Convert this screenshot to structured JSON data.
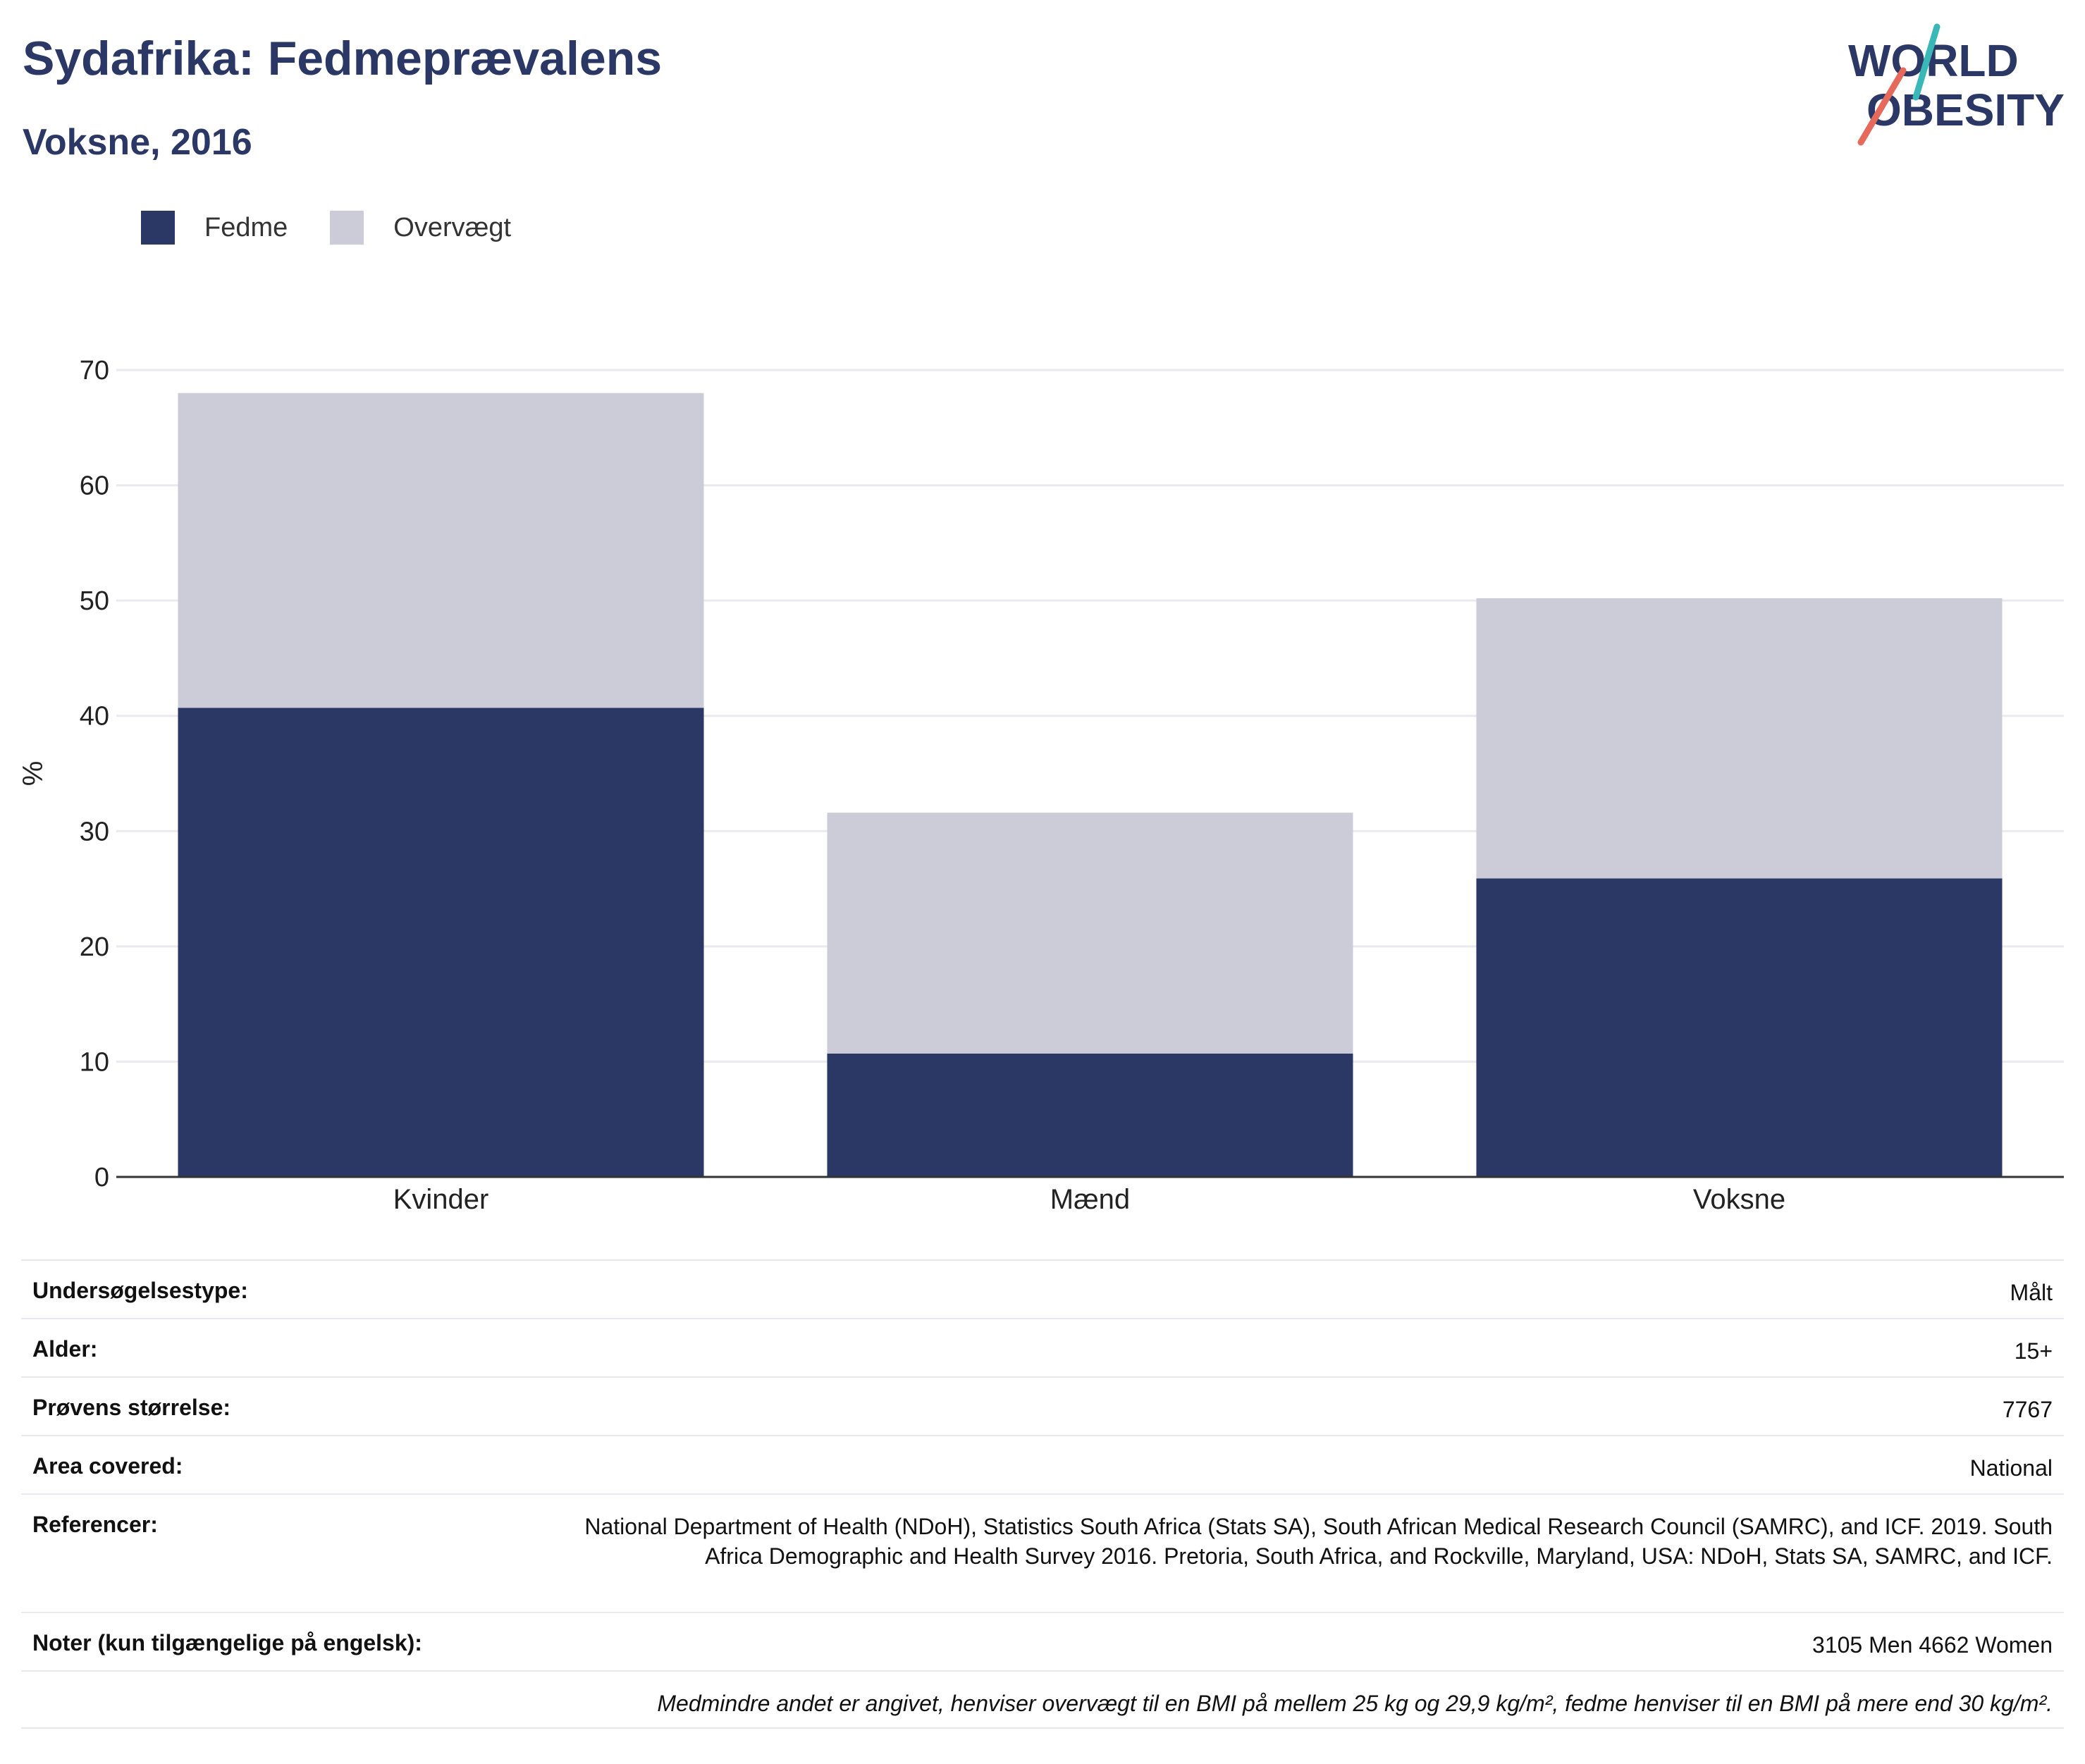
{
  "header": {
    "title": "Sydafrika: Fedmeprævalens",
    "subtitle": "Voksne, 2016"
  },
  "logo": {
    "line1": "WORLD",
    "line2": "OBESITY"
  },
  "colors": {
    "obesity": "#2b3764",
    "overweight": "#cbccd7",
    "grid": "#e9e9ef",
    "axis": "#333333",
    "logo_teal": "#3ab7b7",
    "logo_coral": "#e66a5c"
  },
  "legend": [
    {
      "label": "Fedme",
      "color": "#2b3764"
    },
    {
      "label": "Overvægt",
      "color": "#cbccd7"
    }
  ],
  "chart_data": {
    "type": "bar",
    "stacked": true,
    "categories": [
      "Kvinder",
      "Mænd",
      "Voksne"
    ],
    "series": [
      {
        "name": "Fedme",
        "values": [
          40.7,
          10.7,
          25.9
        ]
      },
      {
        "name": "Overvægt",
        "values": [
          27.3,
          20.9,
          24.3
        ]
      }
    ],
    "ylabel": "%",
    "ylim": [
      0,
      70
    ],
    "yticks": [
      0,
      10,
      20,
      30,
      40,
      50,
      60,
      70
    ],
    "grid": true,
    "legend_position": "top-left"
  },
  "details": {
    "survey_type": {
      "label": "Undersøgelsestype:",
      "value": "Målt"
    },
    "age": {
      "label": "Alder:",
      "value": "15+"
    },
    "sample_size": {
      "label": "Prøvens størrelse:",
      "value": "7767"
    },
    "area": {
      "label": "Area covered:",
      "value": "National"
    },
    "references": {
      "label": "Referencer:",
      "value": "National Department of Health (NDoH), Statistics South Africa (Stats SA), South African Medical Research Council (SAMRC), and ICF. 2019. South Africa Demographic and Health Survey 2016. Pretoria, South Africa, and Rockville, Maryland, USA: NDoH, Stats SA, SAMRC, and ICF."
    },
    "notes": {
      "label": "Noter (kun tilgængelige på engelsk):",
      "value": "3105 Men 4662 Women"
    },
    "footnote": "Medmindre andet er angivet, henviser overvægt til en BMI på mellem 25 kg og 29,9 kg/m², fedme henviser til en BMI på mere end 30 kg/m²."
  }
}
